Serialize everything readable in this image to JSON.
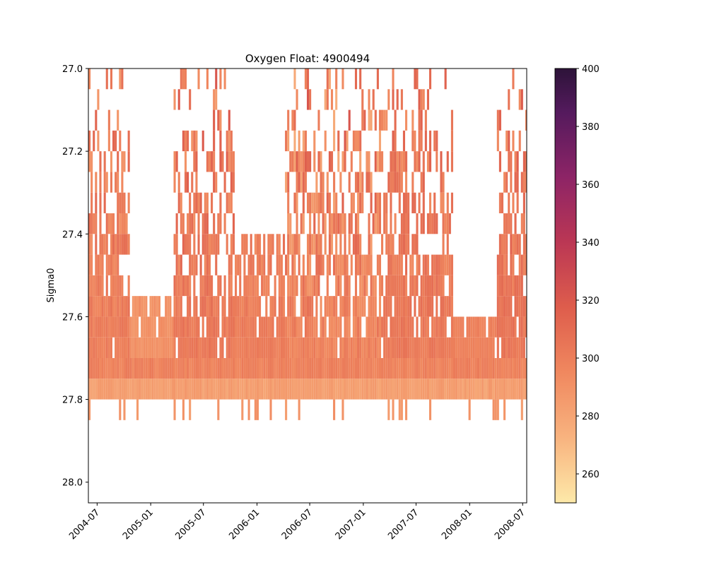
{
  "chart_data": {
    "type": "heatmap",
    "title": "Oxygen Float: 4900494",
    "xlabel": "",
    "ylabel": "Sigma0",
    "x_range": [
      "2004-06-01",
      "2008-07-15"
    ],
    "x_ticks": [
      "2004-07",
      "2005-01",
      "2005-07",
      "2006-01",
      "2006-07",
      "2007-01",
      "2007-07",
      "2008-01",
      "2008-07"
    ],
    "y_range": [
      28.05,
      27.0
    ],
    "y_ticks": [
      "27.0",
      "27.2",
      "27.4",
      "27.6",
      "27.8",
      "28.0"
    ],
    "sigma_bin_width": 0.05,
    "colorbar": {
      "colormap": "magma_r",
      "range": [
        250,
        400
      ],
      "ticks": [
        "260",
        "280",
        "300",
        "320",
        "340",
        "360",
        "380",
        "400"
      ]
    },
    "series": [
      {
        "start": "2004-06-01",
        "end": "2004-10-20",
        "min_sigma": 27.0,
        "base": 300,
        "amplitude": 14
      },
      {
        "start": "2004-10-20",
        "end": "2005-03-20",
        "min_sigma": 27.55,
        "base": 290,
        "amplitude": 10
      },
      {
        "start": "2005-03-20",
        "end": "2005-10-15",
        "min_sigma": 27.0,
        "base": 303,
        "amplitude": 16
      },
      {
        "start": "2005-10-15",
        "end": "2006-04-01",
        "min_sigma": 27.4,
        "base": 300,
        "amplitude": 12
      },
      {
        "start": "2006-04-01",
        "end": "2007-03-01",
        "min_sigma": 27.0,
        "base": 298,
        "amplitude": 22
      },
      {
        "start": "2007-03-01",
        "end": "2007-11-01",
        "min_sigma": 27.0,
        "base": 302,
        "amplitude": 14
      },
      {
        "start": "2007-11-01",
        "end": "2008-04-01",
        "min_sigma": 27.6,
        "base": 298,
        "amplitude": 8
      },
      {
        "start": "2008-04-01",
        "end": "2008-07-15",
        "min_sigma": 27.0,
        "base": 304,
        "amplitude": 14
      }
    ],
    "fixed_bands": [
      {
        "sigma_top": 27.7,
        "sigma_bottom": 27.75,
        "value": 298
      },
      {
        "sigma_top": 27.75,
        "sigma_bottom": 27.8,
        "value": 283
      },
      {
        "sigma_top": 27.8,
        "sigma_bottom": 27.85,
        "value": 288,
        "sparse": true
      }
    ],
    "colors": {
      "low": "#fce8a8",
      "mid": "#e8694e",
      "high": "#2d1339"
    }
  }
}
